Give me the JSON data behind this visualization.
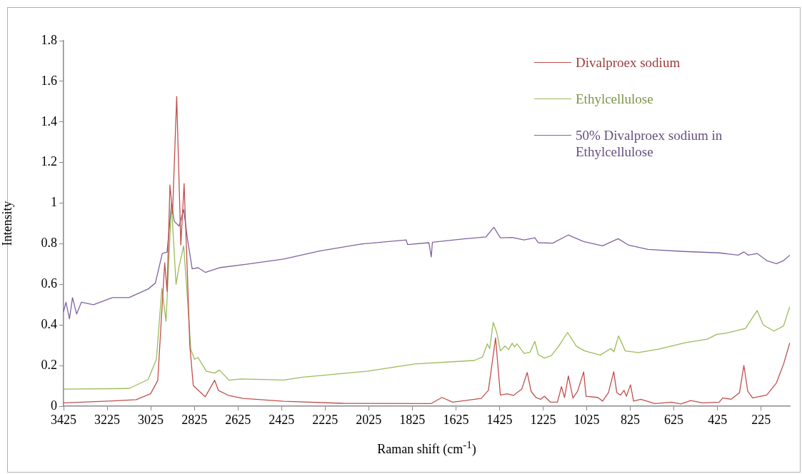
{
  "chart_data": {
    "type": "line",
    "xlabel": "Raman shift (cm$^{-1}$)",
    "ylabel": "Intensity",
    "xlim": [
      3425,
      93
    ],
    "xticks": [
      3425,
      3225,
      3025,
      2825,
      2625,
      2425,
      2225,
      2025,
      1825,
      1625,
      1425,
      1225,
      1025,
      825,
      625,
      425,
      225
    ],
    "ylim": [
      0,
      1.8
    ],
    "yticks": [
      0,
      0.2,
      0.4,
      0.6,
      0.8,
      1,
      1.2,
      1.4,
      1.6,
      1.8
    ],
    "legend": "top right",
    "marker": "none",
    "line_style": "solid",
    "series": [
      {
        "name": "Divalproex sodium",
        "color": "#c0504d",
        "x": [
          3425,
          3201,
          3092,
          3026,
          2993,
          2961,
          2950,
          2937,
          2925,
          2906,
          2887,
          2872,
          2857,
          2846,
          2830,
          2775,
          2732,
          2715,
          2666,
          2601,
          2415,
          2142,
          1738,
          1689,
          1640,
          1509,
          1476,
          1443,
          1421,
          1389,
          1361,
          1323,
          1298,
          1280,
          1258,
          1236,
          1219,
          1192,
          1159,
          1141,
          1127,
          1109,
          1088,
          1067,
          1039,
          1028,
          974,
          952,
          925,
          901,
          887,
          870,
          854,
          843,
          824,
          810,
          777,
          712,
          635,
          593,
          548,
          493,
          417,
          401,
          362,
          324,
          304,
          286,
          264,
          199,
          155,
          122,
          93
        ],
        "values": [
          0.016,
          0.026,
          0.032,
          0.061,
          0.126,
          0.706,
          0.565,
          1.089,
          0.95,
          1.525,
          0.794,
          1.096,
          0.653,
          0.302,
          0.102,
          0.046,
          0.128,
          0.078,
          0.052,
          0.038,
          0.024,
          0.014,
          0.013,
          0.043,
          0.02,
          0.038,
          0.078,
          0.336,
          0.055,
          0.061,
          0.053,
          0.084,
          0.166,
          0.073,
          0.043,
          0.034,
          0.049,
          0.02,
          0.02,
          0.096,
          0.043,
          0.149,
          0.04,
          0.073,
          0.169,
          0.049,
          0.043,
          0.025,
          0.067,
          0.17,
          0.067,
          0.055,
          0.078,
          0.049,
          0.105,
          0.025,
          0.034,
          0.013,
          0.02,
          0.011,
          0.028,
          0.016,
          0.02,
          0.041,
          0.034,
          0.067,
          0.201,
          0.073,
          0.041,
          0.055,
          0.114,
          0.207,
          0.313
        ]
      },
      {
        "name": "Ethylcellulose",
        "color": "#9bbb59",
        "x": [
          3425,
          3125,
          3037,
          2999,
          2974,
          2955,
          2930,
          2909,
          2895,
          2874,
          2857,
          2841,
          2824,
          2808,
          2770,
          2732,
          2710,
          2666,
          2611,
          2415,
          2328,
          2033,
          1815,
          1542,
          1503,
          1481,
          1470,
          1454,
          1438,
          1421,
          1400,
          1383,
          1367,
          1356,
          1345,
          1312,
          1285,
          1263,
          1247,
          1219,
          1187,
          1154,
          1113,
          1072,
          1034,
          963,
          914,
          900,
          879,
          848,
          788,
          695,
          570,
          472,
          428,
          384,
          297,
          243,
          215,
          166,
          122,
          93
        ],
        "values": [
          0.084,
          0.087,
          0.131,
          0.231,
          0.58,
          0.418,
          0.993,
          0.6,
          0.688,
          0.79,
          0.536,
          0.278,
          0.231,
          0.24,
          0.172,
          0.163,
          0.178,
          0.128,
          0.134,
          0.129,
          0.143,
          0.172,
          0.208,
          0.225,
          0.242,
          0.307,
          0.284,
          0.412,
          0.365,
          0.272,
          0.296,
          0.279,
          0.31,
          0.292,
          0.307,
          0.26,
          0.266,
          0.319,
          0.254,
          0.237,
          0.249,
          0.295,
          0.363,
          0.295,
          0.272,
          0.252,
          0.284,
          0.268,
          0.346,
          0.272,
          0.264,
          0.281,
          0.313,
          0.33,
          0.354,
          0.36,
          0.383,
          0.471,
          0.4,
          0.37,
          0.395,
          0.491
        ]
      },
      {
        "name": "50% Divalproex sodium in Ethylcellulose",
        "color": "#8064a2",
        "x": [
          3425,
          3414,
          3398,
          3384,
          3365,
          3343,
          3288,
          3201,
          3125,
          3037,
          3004,
          2972,
          2950,
          2930,
          2917,
          2895,
          2874,
          2857,
          2835,
          2808,
          2775,
          2710,
          2579,
          2415,
          2251,
          2055,
          1853,
          1847,
          1749,
          1738,
          1733,
          1596,
          1487,
          1451,
          1421,
          1367,
          1312,
          1263,
          1247,
          1181,
          1110,
          1039,
          952,
          881,
          832,
          744,
          581,
          417,
          330,
          304,
          284,
          243,
          199,
          155,
          122,
          93
        ],
        "values": [
          0.465,
          0.512,
          0.43,
          0.535,
          0.454,
          0.512,
          0.5,
          0.535,
          0.535,
          0.577,
          0.606,
          0.752,
          0.759,
          0.999,
          0.91,
          0.887,
          0.969,
          0.828,
          0.676,
          0.682,
          0.659,
          0.682,
          0.7,
          0.725,
          0.764,
          0.799,
          0.819,
          0.796,
          0.805,
          0.735,
          0.807,
          0.823,
          0.834,
          0.881,
          0.829,
          0.831,
          0.819,
          0.829,
          0.805,
          0.803,
          0.843,
          0.811,
          0.79,
          0.825,
          0.793,
          0.772,
          0.762,
          0.755,
          0.744,
          0.76,
          0.744,
          0.752,
          0.717,
          0.702,
          0.717,
          0.744
        ]
      }
    ]
  }
}
